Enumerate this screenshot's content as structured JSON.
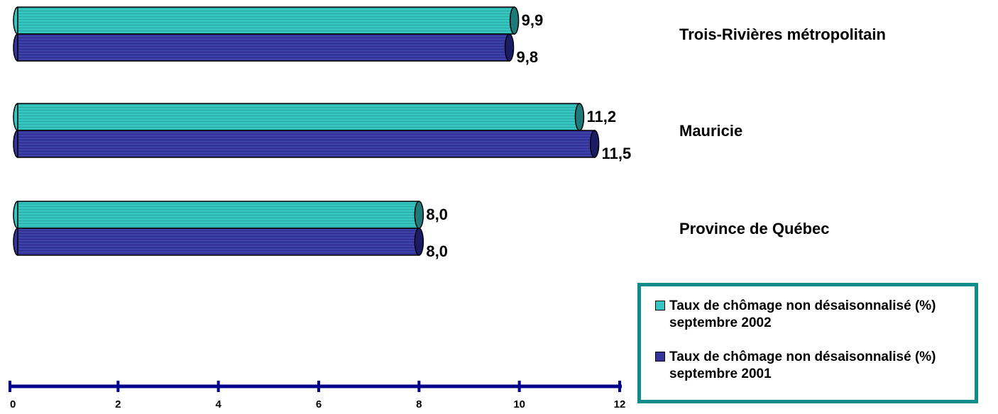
{
  "chart_data": {
    "type": "bar",
    "orientation": "horizontal",
    "categories": [
      "Trois-Rivières métropolitain",
      "Mauricie",
      "Province de Québec"
    ],
    "series": [
      {
        "name": "Taux de chômage non désaisonnalisé (%) septembre 2002",
        "values": [
          9.9,
          11.2,
          8.0
        ],
        "labels": [
          "9,9",
          "11,2",
          "8,0"
        ],
        "color": "#35c4c0"
      },
      {
        "name": "Taux de chômage non désaisonnalisé (%) septembre 2001",
        "values": [
          9.8,
          11.5,
          8.0
        ],
        "labels": [
          "9,8",
          "11,5",
          "8,0"
        ],
        "color": "#34349a"
      }
    ],
    "x_ticks": [
      "0",
      "2",
      "4",
      "6",
      "8",
      "10",
      "12"
    ],
    "xlim": [
      0,
      12
    ],
    "title": "",
    "xlabel": "",
    "ylabel": "",
    "legend_position": "bottom-right",
    "grid": false,
    "axis_color": "#00008b",
    "legend_border_color": "#138a8a"
  }
}
